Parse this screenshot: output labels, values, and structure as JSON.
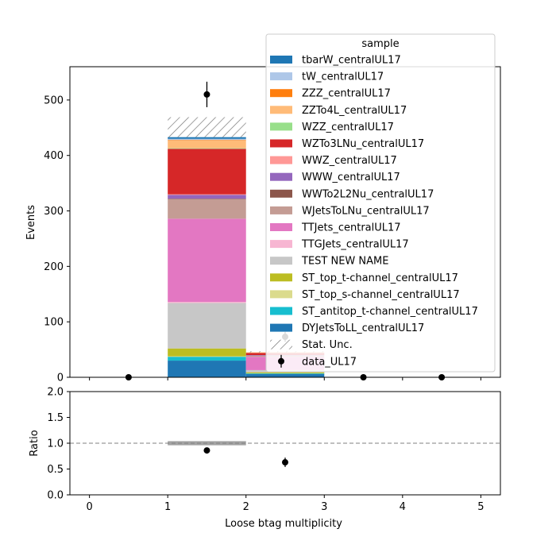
{
  "chart_data": [
    {
      "type": "bar",
      "stacked": true,
      "panel": "main",
      "ylabel": "Events",
      "xlim": [
        -0.25,
        5.25
      ],
      "ylim": [
        0,
        560
      ],
      "x_bin_edges": [
        0,
        1,
        2,
        3,
        4,
        5
      ],
      "yticks": [
        0,
        100,
        200,
        300,
        400,
        500
      ],
      "ytick_labels": [
        "0",
        "100",
        "200",
        "300",
        "400",
        "500"
      ],
      "legend": {
        "title": "sample",
        "placement": "top-right"
      },
      "series": [
        {
          "name": "DYJetsToLL_centralUL17",
          "color": "#1f77b4",
          "values": [
            0,
            30,
            6,
            0,
            0
          ]
        },
        {
          "name": "ST_antitop_t-channel_centralUL17",
          "color": "#17becf",
          "values": [
            0,
            7,
            1,
            0,
            0
          ]
        },
        {
          "name": "ST_top_s-channel_centralUL17",
          "color": "#dbdb8d",
          "values": [
            0,
            1,
            0,
            0,
            0
          ]
        },
        {
          "name": "ST_top_t-channel_centralUL17",
          "color": "#bcbd22",
          "values": [
            0,
            14,
            2,
            0,
            0
          ]
        },
        {
          "name": "TEST NEW NAME",
          "color": "#c7c7c7",
          "values": [
            0,
            82,
            4,
            0,
            0
          ]
        },
        {
          "name": "TTGJets_centralUL17",
          "color": "#f7b6d2",
          "values": [
            0,
            2,
            0,
            0,
            0
          ]
        },
        {
          "name": "TTJets_centralUL17",
          "color": "#e377c2",
          "values": [
            0,
            150,
            24,
            0,
            0
          ]
        },
        {
          "name": "WJetsToLNu_centralUL17",
          "color": "#c49c94",
          "values": [
            0,
            35,
            2,
            0,
            0
          ]
        },
        {
          "name": "WWTo2L2Nu_centralUL17",
          "color": "#8c564b",
          "values": [
            0,
            1,
            0,
            0,
            0
          ]
        },
        {
          "name": "WWW_centralUL17",
          "color": "#9467bd",
          "values": [
            0,
            7,
            1,
            0,
            0
          ]
        },
        {
          "name": "WWZ_centralUL17",
          "color": "#ff9896",
          "values": [
            0,
            1,
            0,
            0,
            0
          ]
        },
        {
          "name": "WZTo3LNu_centralUL17",
          "color": "#d62728",
          "values": [
            0,
            82,
            4,
            0,
            0
          ]
        },
        {
          "name": "WZZ_centralUL17",
          "color": "#98df8a",
          "values": [
            0,
            1,
            0,
            0,
            0
          ]
        },
        {
          "name": "ZZTo4L_centralUL17",
          "color": "#ffbb78",
          "values": [
            0,
            14,
            1,
            0,
            0
          ]
        },
        {
          "name": "ZZZ_centralUL17",
          "color": "#ff7f0e",
          "values": [
            0,
            1,
            0,
            0,
            0
          ]
        },
        {
          "name": "tW_centralUL17",
          "color": "#aec7e8",
          "values": [
            0,
            2,
            0,
            0,
            0
          ]
        },
        {
          "name": "tbarW_centralUL17",
          "color": "#1f77b4",
          "values": [
            0,
            3,
            0,
            0,
            0
          ]
        }
      ],
      "stat_unc": {
        "name": "Stat. Unc.",
        "upper": [
          0,
          469,
          47,
          0,
          0
        ],
        "lower": [
          0,
          433,
          45,
          0,
          0
        ]
      },
      "data": {
        "name": "data_UL17",
        "color": "#000000",
        "x": [
          0.5,
          1.5,
          2.5,
          3.5,
          4.5
        ],
        "y": [
          0,
          510,
          73,
          0,
          0
        ],
        "yerr": [
          0,
          23,
          9,
          0,
          0
        ]
      }
    },
    {
      "type": "scatter",
      "panel": "ratio",
      "xlabel": "Loose btag multiplicity",
      "ylabel": "Ratio",
      "xlim": [
        -0.25,
        5.25
      ],
      "ylim": [
        0,
        2
      ],
      "xticks": [
        0,
        1,
        2,
        3,
        4,
        5
      ],
      "xtick_labels": [
        "0",
        "1",
        "2",
        "3",
        "4",
        "5"
      ],
      "yticks": [
        0,
        0.5,
        1.0,
        1.5,
        2.0
      ],
      "ytick_labels": [
        "0.0",
        "0.5",
        "1.0",
        "1.5",
        "2.0"
      ],
      "reference_line": 1.0,
      "unc_band": {
        "x_bins": [
          [
            1,
            2
          ]
        ],
        "lower": [
          0.96
        ],
        "upper": [
          1.04
        ]
      },
      "points": {
        "x": [
          1.5,
          2.5
        ],
        "y": [
          0.86,
          0.63
        ],
        "yerr": [
          0.04,
          0.09
        ]
      }
    }
  ]
}
